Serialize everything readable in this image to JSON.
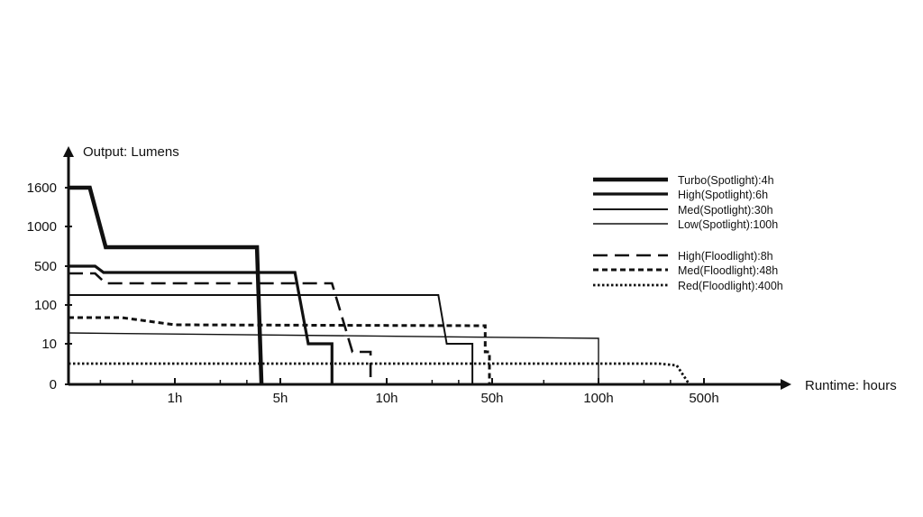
{
  "chart_data": {
    "type": "line",
    "title": "",
    "ylabel": "Output: Lumens",
    "xlabel": "Runtime: hours",
    "y_ticks": [
      "0",
      "10",
      "100",
      "500",
      "1000",
      "1600"
    ],
    "x_ticks": [
      "1h",
      "5h",
      "10h",
      "50h",
      "100h",
      "500h"
    ],
    "legend_placement": "top-right",
    "grid": false,
    "series": [
      {
        "name": "Turbo(Spotlight):4h",
        "style": "solid-heavy",
        "points": [
          [
            0,
            "1600"
          ],
          [
            0.2,
            "1600"
          ],
          [
            0.35,
            "700"
          ],
          [
            3.5,
            "700"
          ],
          [
            3.75,
            "0"
          ]
        ]
      },
      {
        "name": "High(Spotlight):6h",
        "style": "solid-bold",
        "points": [
          [
            0,
            "500"
          ],
          [
            0.25,
            "500"
          ],
          [
            0.33,
            "430"
          ],
          [
            5.5,
            "430"
          ],
          [
            6.0,
            "10"
          ],
          [
            7.0,
            "10"
          ],
          [
            7.0,
            "0"
          ]
        ]
      },
      {
        "name": "Med(Spotlight):30h",
        "style": "solid-medium",
        "points": [
          [
            0,
            "130"
          ],
          [
            22,
            "130"
          ],
          [
            25,
            "10"
          ],
          [
            37,
            "10"
          ],
          [
            37,
            "0"
          ]
        ]
      },
      {
        "name": "Low(Spotlight):100h",
        "style": "solid-thin",
        "points": [
          [
            0,
            "18"
          ],
          [
            100,
            "12"
          ],
          [
            100,
            "0"
          ]
        ]
      },
      {
        "name": "High(Floodlight):8h",
        "style": "long-dash",
        "points": [
          [
            0,
            "400"
          ],
          [
            0.25,
            "400"
          ],
          [
            0.35,
            "300"
          ],
          [
            7.0,
            "300"
          ],
          [
            8.0,
            "5"
          ],
          [
            9.0,
            "5"
          ],
          [
            9.0,
            "0"
          ]
        ]
      },
      {
        "name": "Med(Floodlight):48h",
        "style": "short-dash",
        "points": [
          [
            0,
            "50"
          ],
          [
            0.5,
            "50"
          ],
          [
            1.0,
            "32"
          ],
          [
            45,
            "30"
          ],
          [
            45,
            "5"
          ],
          [
            48,
            "5"
          ],
          [
            48,
            "0"
          ]
        ]
      },
      {
        "name": "Red(Floodlight):400h",
        "style": "dotted",
        "points": [
          [
            0,
            "3"
          ],
          [
            250,
            "3"
          ],
          [
            330,
            "2"
          ],
          [
            400,
            "0"
          ]
        ]
      }
    ]
  }
}
